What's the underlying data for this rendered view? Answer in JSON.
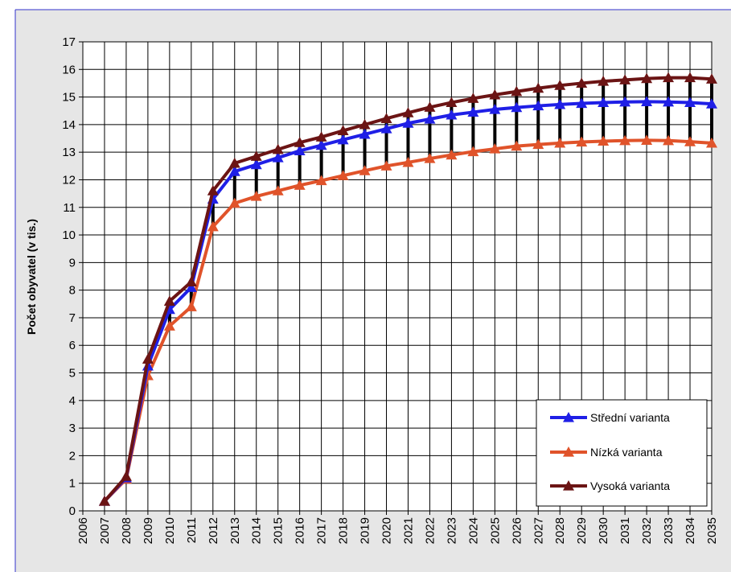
{
  "chart_data": {
    "type": "line",
    "title": "",
    "xlabel": "",
    "ylabel": "Počet obyvatel (v tis.)",
    "x": [
      "2006",
      "2007",
      "2008",
      "2009",
      "2010",
      "2011",
      "2012",
      "2013",
      "2014",
      "2015",
      "2016",
      "2017",
      "2018",
      "2019",
      "2020",
      "2021",
      "2022",
      "2023",
      "2024",
      "2025",
      "2026",
      "2027",
      "2028",
      "2029",
      "2030",
      "2031",
      "2032",
      "2033",
      "2034",
      "2035"
    ],
    "ylim": [
      0,
      17
    ],
    "yticks": [
      "0",
      "1",
      "2",
      "3",
      "4",
      "5",
      "6",
      "7",
      "8",
      "9",
      "10",
      "11",
      "12",
      "13",
      "14",
      "15",
      "16",
      "17"
    ],
    "grid": true,
    "legend_position": "bottom-right",
    "high_low_lines": true,
    "series": [
      {
        "name": "Střední varianta",
        "color": "#1f1fe6",
        "marker": "triangle",
        "values": [
          null,
          0.35,
          1.2,
          5.25,
          7.3,
          8.1,
          11.3,
          12.3,
          12.55,
          12.8,
          13.05,
          13.25,
          13.45,
          13.65,
          13.85,
          14.05,
          14.2,
          14.35,
          14.45,
          14.55,
          14.62,
          14.68,
          14.73,
          14.77,
          14.8,
          14.82,
          14.83,
          14.82,
          14.8,
          14.75
        ]
      },
      {
        "name": "Nízká varianta",
        "color": "#e0532a",
        "marker": "triangle",
        "values": [
          null,
          0.35,
          1.15,
          4.9,
          6.7,
          7.4,
          10.3,
          11.15,
          11.4,
          11.6,
          11.8,
          11.97,
          12.15,
          12.33,
          12.5,
          12.63,
          12.77,
          12.9,
          13.02,
          13.12,
          13.22,
          13.28,
          13.33,
          13.37,
          13.4,
          13.42,
          13.43,
          13.42,
          13.38,
          13.33
        ]
      },
      {
        "name": "Vysoká varianta",
        "color": "#6b1414",
        "marker": "triangle",
        "values": [
          null,
          0.35,
          1.25,
          5.5,
          7.6,
          8.3,
          11.6,
          12.6,
          12.85,
          13.1,
          13.35,
          13.55,
          13.78,
          14.0,
          14.22,
          14.43,
          14.63,
          14.8,
          14.95,
          15.08,
          15.2,
          15.32,
          15.42,
          15.5,
          15.57,
          15.62,
          15.67,
          15.7,
          15.7,
          15.65
        ]
      }
    ]
  },
  "colors": {
    "plot_background": "#e6e6e6",
    "chart_border": "#3333cc",
    "grid": "#000000",
    "high_low": "#000000"
  }
}
